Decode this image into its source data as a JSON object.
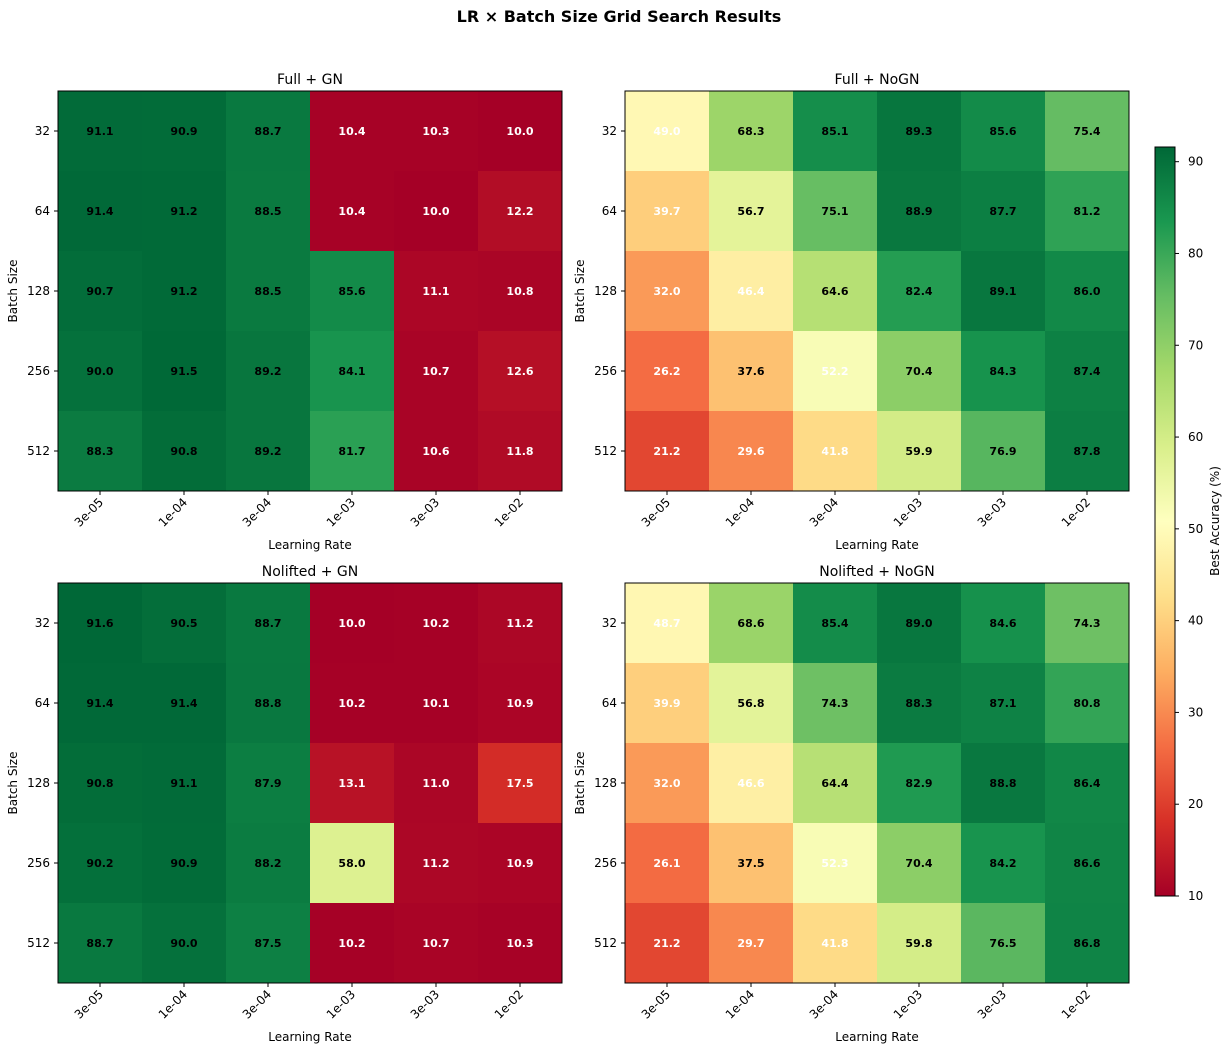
{
  "figure": {
    "title": "LR × Batch Size Grid Search Results"
  },
  "colorbar": {
    "label": "Best Accuracy (%)",
    "ticks": [
      "10",
      "20",
      "30",
      "40",
      "50",
      "60",
      "70",
      "80",
      "90"
    ]
  },
  "chart_data": [
    {
      "type": "heatmap",
      "title": "Full + GN",
      "xlabel": "Learning Rate",
      "ylabel": "Batch Size",
      "x_categories": [
        "3e-05",
        "1e-04",
        "3e-04",
        "1e-03",
        "3e-03",
        "1e-02"
      ],
      "y_categories": [
        "32",
        "64",
        "128",
        "256",
        "512"
      ],
      "values": [
        [
          91.1,
          90.9,
          88.7,
          10.4,
          10.3,
          10.0
        ],
        [
          91.4,
          91.2,
          88.5,
          10.4,
          10.0,
          12.2
        ],
        [
          90.7,
          91.2,
          88.5,
          85.6,
          11.1,
          10.8
        ],
        [
          90.0,
          91.5,
          89.2,
          84.1,
          10.7,
          12.6
        ],
        [
          88.3,
          90.8,
          89.2,
          81.7,
          10.6,
          11.8
        ]
      ]
    },
    {
      "type": "heatmap",
      "title": "Full + NoGN",
      "xlabel": "Learning Rate",
      "ylabel": "Batch Size",
      "x_categories": [
        "3e-05",
        "1e-04",
        "3e-04",
        "1e-03",
        "3e-03",
        "1e-02"
      ],
      "y_categories": [
        "32",
        "64",
        "128",
        "256",
        "512"
      ],
      "values": [
        [
          49.0,
          68.3,
          85.1,
          89.3,
          85.6,
          75.4
        ],
        [
          39.7,
          56.7,
          75.1,
          88.9,
          87.7,
          81.2
        ],
        [
          32.0,
          46.4,
          64.6,
          82.4,
          89.1,
          86.0
        ],
        [
          26.2,
          37.6,
          52.2,
          70.4,
          84.3,
          87.4
        ],
        [
          21.2,
          29.6,
          41.8,
          59.9,
          76.9,
          87.8
        ]
      ]
    },
    {
      "type": "heatmap",
      "title": "Nolifted + GN",
      "xlabel": "Learning Rate",
      "ylabel": "Batch Size",
      "x_categories": [
        "3e-05",
        "1e-04",
        "3e-04",
        "1e-03",
        "3e-03",
        "1e-02"
      ],
      "y_categories": [
        "32",
        "64",
        "128",
        "256",
        "512"
      ],
      "values": [
        [
          91.6,
          90.5,
          88.7,
          10.0,
          10.2,
          11.2
        ],
        [
          91.4,
          91.4,
          88.8,
          10.2,
          10.1,
          10.9
        ],
        [
          90.8,
          91.1,
          87.9,
          13.1,
          11.0,
          17.5
        ],
        [
          90.2,
          90.9,
          88.2,
          58.0,
          11.2,
          10.9
        ],
        [
          88.7,
          90.0,
          87.5,
          10.2,
          10.7,
          10.3
        ]
      ]
    },
    {
      "type": "heatmap",
      "title": "Nolifted + NoGN",
      "xlabel": "Learning Rate",
      "ylabel": "Batch Size",
      "x_categories": [
        "3e-05",
        "1e-04",
        "3e-04",
        "1e-03",
        "3e-03",
        "1e-02"
      ],
      "y_categories": [
        "32",
        "64",
        "128",
        "256",
        "512"
      ],
      "values": [
        [
          48.7,
          68.6,
          85.4,
          89.0,
          84.6,
          74.3
        ],
        [
          39.9,
          56.8,
          74.3,
          88.3,
          87.1,
          80.8
        ],
        [
          32.0,
          46.6,
          64.4,
          82.9,
          88.8,
          86.4
        ],
        [
          26.1,
          37.5,
          52.3,
          70.4,
          84.2,
          86.6
        ],
        [
          21.2,
          29.7,
          41.8,
          59.8,
          76.5,
          86.8
        ]
      ]
    }
  ],
  "color_scale": {
    "colormap": "RdYlGn",
    "vmin": 10,
    "vmax": 91.6
  }
}
